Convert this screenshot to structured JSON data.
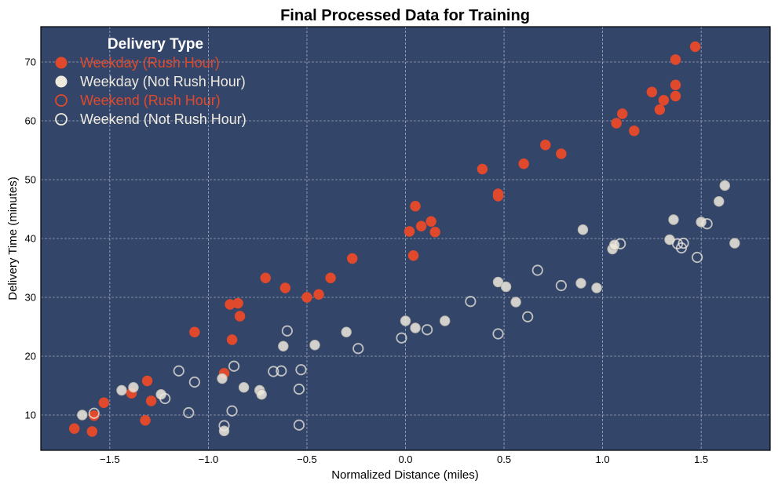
{
  "chart_data": {
    "type": "scatter",
    "title": "Final Processed Data for Training",
    "xlabel": "Normalized Distance (miles)",
    "ylabel": "Delivery Time (minutes)",
    "xlim": [
      -1.85,
      1.85
    ],
    "ylim": [
      4,
      76
    ],
    "xticks": [
      -1.5,
      -1.0,
      -0.5,
      0.0,
      0.5,
      1.0,
      1.5
    ],
    "xtick_labels": [
      "−1.5",
      "−1.0",
      "−0.5",
      "0.0",
      "0.5",
      "1.0",
      "1.5"
    ],
    "yticks": [
      10,
      20,
      30,
      40,
      50,
      60,
      70
    ],
    "ytick_labels": [
      "10",
      "20",
      "30",
      "40",
      "50",
      "60",
      "70"
    ],
    "grid": true,
    "legend_title": "Delivery Type",
    "legend_position": "top-left",
    "series": [
      {
        "name": "Weekday (Rush Hour)",
        "style": "filled",
        "color": "#e0492c",
        "points": [
          [
            -1.68,
            7.7
          ],
          [
            -1.59,
            7.2
          ],
          [
            -1.58,
            9.9
          ],
          [
            -1.53,
            12.1
          ],
          [
            -1.39,
            13.7
          ],
          [
            -1.32,
            9.1
          ],
          [
            -1.31,
            15.8
          ],
          [
            -1.29,
            12.4
          ],
          [
            -1.07,
            24.1
          ],
          [
            -0.92,
            17.1
          ],
          [
            -0.89,
            28.8
          ],
          [
            -0.88,
            22.8
          ],
          [
            -0.85,
            29.0
          ],
          [
            -0.84,
            26.8
          ],
          [
            -0.71,
            33.3
          ],
          [
            -0.61,
            31.6
          ],
          [
            -0.5,
            30.0
          ],
          [
            -0.44,
            30.5
          ],
          [
            -0.38,
            33.3
          ],
          [
            -0.27,
            36.6
          ],
          [
            0.02,
            41.2
          ],
          [
            0.04,
            37.1
          ],
          [
            0.05,
            45.5
          ],
          [
            0.08,
            42.1
          ],
          [
            0.13,
            42.9
          ],
          [
            0.15,
            41.1
          ],
          [
            0.39,
            51.8
          ],
          [
            0.47,
            47.2
          ],
          [
            0.47,
            47.6
          ],
          [
            0.6,
            52.7
          ],
          [
            0.71,
            55.9
          ],
          [
            0.79,
            54.4
          ],
          [
            1.07,
            59.6
          ],
          [
            1.1,
            61.2
          ],
          [
            1.16,
            58.3
          ],
          [
            1.25,
            64.9
          ],
          [
            1.29,
            61.9
          ],
          [
            1.31,
            63.5
          ],
          [
            1.37,
            70.4
          ],
          [
            1.37,
            66.1
          ],
          [
            1.37,
            64.2
          ],
          [
            1.47,
            72.6
          ]
        ]
      },
      {
        "name": "Weekday (Not Rush Hour)",
        "style": "filled",
        "color": "#eeeade",
        "points": [
          [
            -1.64,
            10.0
          ],
          [
            -1.44,
            14.2
          ],
          [
            -1.38,
            14.7
          ],
          [
            -1.24,
            13.5
          ],
          [
            -0.93,
            16.2
          ],
          [
            -0.92,
            7.3
          ],
          [
            -0.82,
            14.7
          ],
          [
            -0.74,
            14.2
          ],
          [
            -0.73,
            13.5
          ],
          [
            -0.62,
            21.7
          ],
          [
            -0.46,
            21.9
          ],
          [
            -0.3,
            24.1
          ],
          [
            0.0,
            26.0
          ],
          [
            0.05,
            24.8
          ],
          [
            0.2,
            26.0
          ],
          [
            0.47,
            32.6
          ],
          [
            0.51,
            31.8
          ],
          [
            0.56,
            29.2
          ],
          [
            0.89,
            32.4
          ],
          [
            0.9,
            41.5
          ],
          [
            0.97,
            31.6
          ],
          [
            1.05,
            38.2
          ],
          [
            1.06,
            38.9
          ],
          [
            1.34,
            39.8
          ],
          [
            1.36,
            43.2
          ],
          [
            1.5,
            42.8
          ],
          [
            1.59,
            46.3
          ],
          [
            1.62,
            49.0
          ],
          [
            1.67,
            39.2
          ]
        ]
      },
      {
        "name": "Weekend (Rush Hour)",
        "style": "hollow",
        "color": "#e0492c",
        "points": []
      },
      {
        "name": "Weekend (Not Rush Hour)",
        "style": "hollow",
        "color": "#eeeade",
        "points": [
          [
            -1.58,
            10.3
          ],
          [
            -1.22,
            12.8
          ],
          [
            -1.15,
            17.5
          ],
          [
            -1.1,
            10.4
          ],
          [
            -1.07,
            15.6
          ],
          [
            -0.92,
            8.2
          ],
          [
            -0.88,
            10.7
          ],
          [
            -0.87,
            18.3
          ],
          [
            -0.67,
            17.4
          ],
          [
            -0.63,
            17.5
          ],
          [
            -0.6,
            24.3
          ],
          [
            -0.54,
            8.3
          ],
          [
            -0.54,
            14.4
          ],
          [
            -0.53,
            17.7
          ],
          [
            -0.24,
            21.3
          ],
          [
            -0.02,
            23.1
          ],
          [
            0.11,
            24.5
          ],
          [
            0.33,
            29.3
          ],
          [
            0.47,
            23.8
          ],
          [
            0.62,
            26.7
          ],
          [
            0.67,
            34.6
          ],
          [
            0.79,
            32.0
          ],
          [
            1.09,
            39.1
          ],
          [
            1.38,
            39.1
          ],
          [
            1.4,
            38.4
          ],
          [
            1.41,
            39.2
          ],
          [
            1.48,
            36.8
          ],
          [
            1.53,
            42.5
          ]
        ]
      }
    ]
  }
}
